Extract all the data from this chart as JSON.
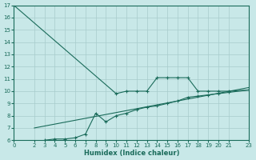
{
  "xlabel": "Humidex (Indice chaleur)",
  "xlim": [
    0,
    23
  ],
  "ylim": [
    6,
    17
  ],
  "yticks": [
    6,
    7,
    8,
    9,
    10,
    11,
    12,
    13,
    14,
    15,
    16,
    17
  ],
  "xticks": [
    0,
    2,
    3,
    4,
    5,
    6,
    7,
    8,
    9,
    10,
    11,
    12,
    13,
    14,
    15,
    16,
    17,
    18,
    19,
    20,
    21,
    23
  ],
  "bg_color": "#c8e8e8",
  "grid_color": "#a8cccc",
  "line_color": "#1a6b5a",
  "line1_x": [
    0,
    10,
    11,
    12,
    13,
    14,
    15,
    16,
    17,
    18,
    19,
    20,
    21,
    23
  ],
  "line1_y": [
    17,
    9.8,
    10.0,
    10.0,
    10.0,
    11.1,
    11.1,
    11.1,
    11.1,
    10.0,
    10.0,
    10.0,
    10.0,
    10.1
  ],
  "line2_x": [
    2,
    23
  ],
  "line2_y": [
    7.0,
    10.3
  ],
  "line3_x": [
    3,
    4,
    5,
    6,
    7,
    8,
    9,
    10,
    11,
    12,
    13,
    14,
    15,
    16,
    17,
    18,
    19,
    20,
    21,
    23
  ],
  "line3_y": [
    6.0,
    6.1,
    6.1,
    6.2,
    6.5,
    8.2,
    7.5,
    8.0,
    8.2,
    8.5,
    8.7,
    8.8,
    9.0,
    9.2,
    9.5,
    9.6,
    9.7,
    9.8,
    9.9,
    10.1
  ]
}
